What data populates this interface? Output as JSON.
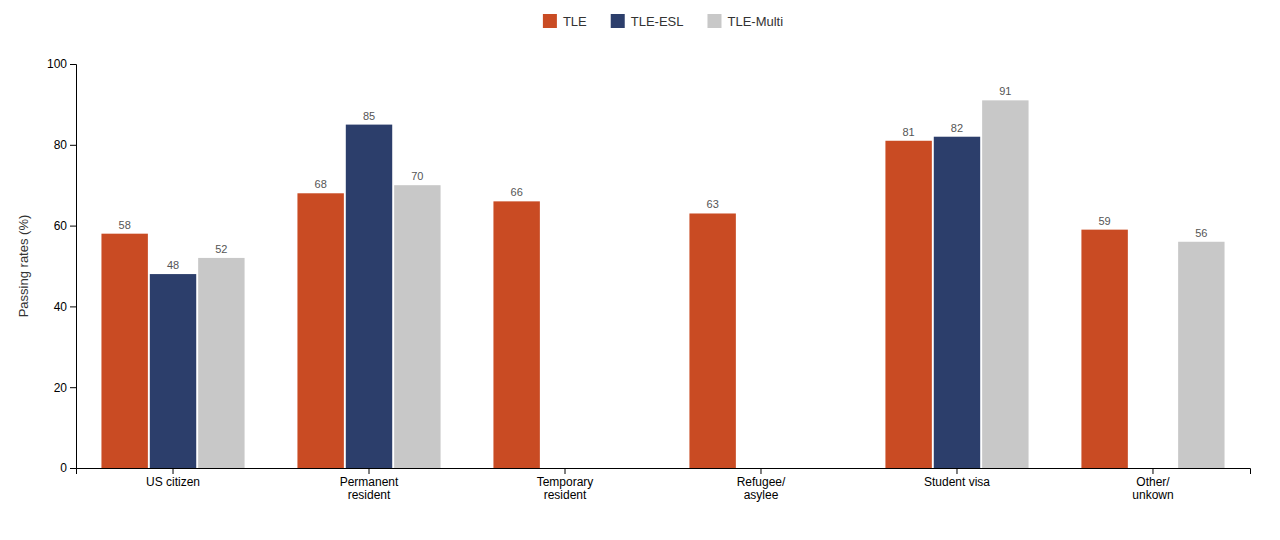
{
  "chart_data": {
    "type": "bar",
    "categories": [
      "US citizen",
      "Permanent\nresident",
      "Temporary\nresident",
      "Refugee/\nasylee",
      "Student visa",
      "Other/\nunkown"
    ],
    "series": [
      {
        "name": "TLE",
        "color": "#c94b23",
        "values": [
          58,
          68,
          66,
          63,
          81,
          59
        ]
      },
      {
        "name": "TLE-ESL",
        "color": "#2c3e6b",
        "values": [
          48,
          85,
          null,
          null,
          82,
          null
        ]
      },
      {
        "name": "TLE-Multi",
        "color": "#c8c8c8",
        "values": [
          52,
          70,
          null,
          null,
          91,
          56
        ]
      }
    ],
    "ylabel": "Passing rates (%)",
    "ylim": [
      0,
      100
    ],
    "yticks": [
      0,
      20,
      40,
      60,
      80,
      100
    ],
    "grid": false,
    "legend": "top",
    "data_labels": true
  }
}
